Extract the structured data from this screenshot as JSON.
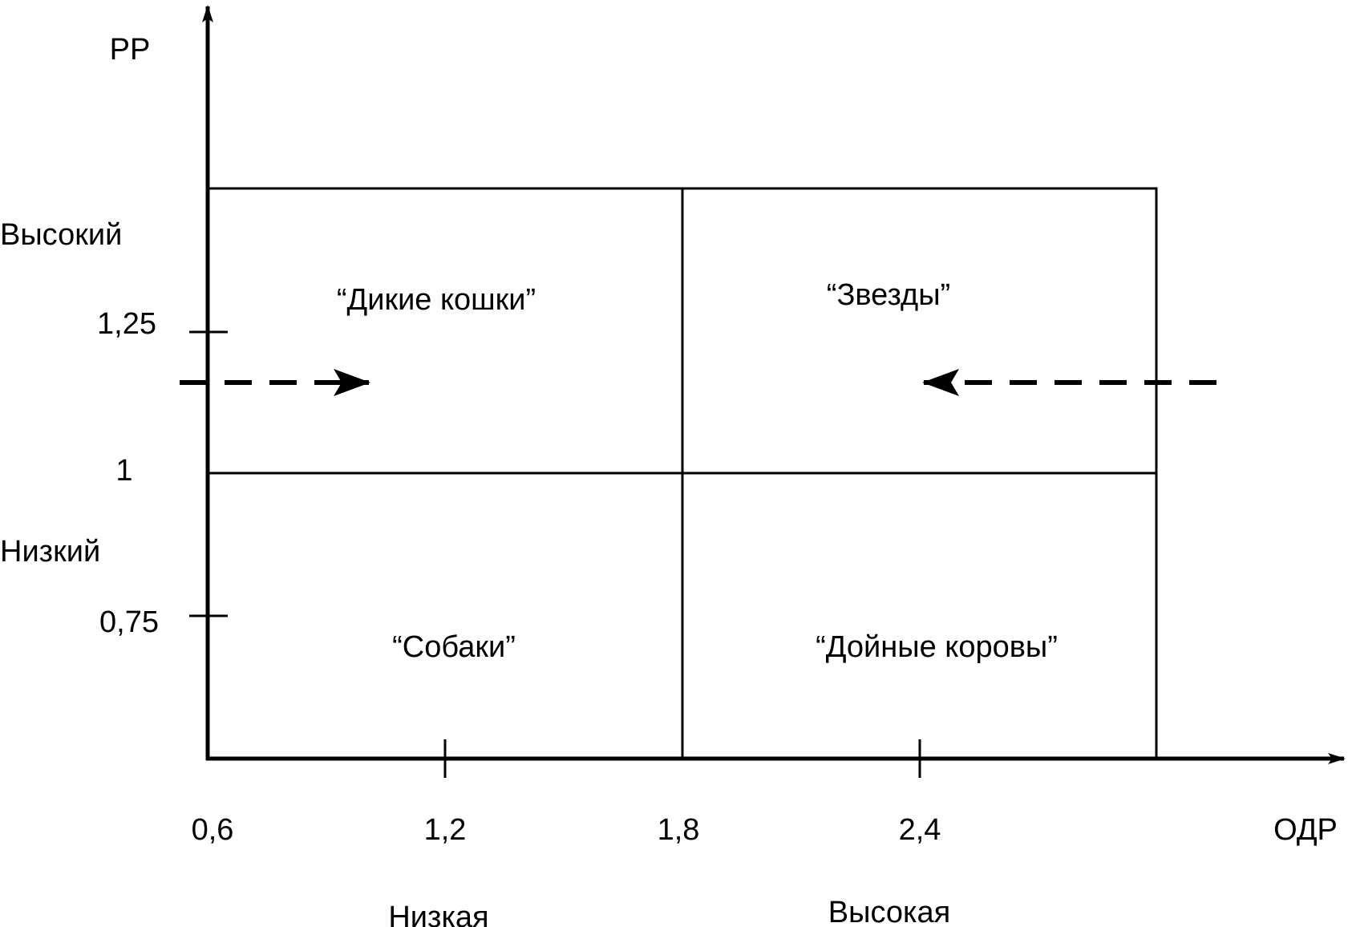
{
  "y_axis": {
    "title": "РР",
    "high_label": "Высокий",
    "low_label": "Низкий",
    "ticks": [
      "1,25",
      "1",
      "0,75"
    ]
  },
  "x_axis": {
    "title": "ОДР",
    "ticks": [
      "0,6",
      "1,2",
      "1,8",
      "2,4"
    ],
    "low_label": "Низкая",
    "high_label": "Высокая"
  },
  "quadrants": {
    "top_left": "“Дикие кошки”",
    "top_right": "“Звезды”",
    "bottom_left": "“Собаки”",
    "bottom_right": "“Дойные коровы”"
  },
  "colors": {
    "line": "#000000",
    "background": "#ffffff"
  }
}
